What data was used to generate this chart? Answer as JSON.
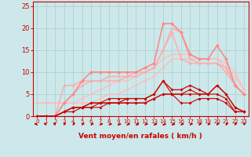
{
  "bg_color": "#cce8ea",
  "grid_color": "#aacccc",
  "axis_color": "#cc0000",
  "tick_color": "#cc0000",
  "xlabel": "Vent moyen/en rafales ( km/h )",
  "xlabel_color": "#cc0000",
  "ylabel_values": [
    0,
    5,
    10,
    15,
    20,
    25
  ],
  "xlim": [
    -0.5,
    23.5
  ],
  "ylim": [
    0,
    26
  ],
  "x": [
    0,
    1,
    2,
    3,
    4,
    5,
    6,
    7,
    8,
    9,
    10,
    11,
    12,
    13,
    14,
    15,
    16,
    17,
    18,
    19,
    20,
    21,
    22,
    23
  ],
  "series": [
    {
      "y": [
        3,
        3,
        3,
        3,
        3,
        3,
        3,
        4,
        5,
        5,
        6,
        7,
        8,
        9,
        11,
        13,
        13,
        13,
        13,
        13,
        13,
        12,
        10,
        6
      ],
      "color": "#ffbbbb",
      "lw": 0.9,
      "marker": "D",
      "ms": 2.0,
      "zorder": 2
    },
    {
      "y": [
        3,
        3,
        3,
        3,
        3,
        4,
        5,
        6,
        7,
        8,
        8,
        9,
        10,
        11,
        13,
        14,
        14,
        14,
        13,
        13,
        13,
        11,
        9,
        6
      ],
      "color": "#ffbbbb",
      "lw": 0.9,
      "marker": "D",
      "ms": 2.0,
      "zorder": 2
    },
    {
      "y": [
        0,
        0,
        0,
        3,
        5,
        7,
        8,
        8,
        9,
        9,
        9,
        9,
        10,
        11,
        15,
        20,
        19,
        13,
        12,
        12,
        12,
        10,
        7,
        5
      ],
      "color": "#ffaaaa",
      "lw": 1.0,
      "marker": "D",
      "ms": 2.0,
      "zorder": 3
    },
    {
      "y": [
        0,
        0,
        0,
        7,
        7,
        8,
        8,
        8,
        8,
        8,
        9,
        10,
        10,
        11,
        15,
        19,
        13,
        12,
        12,
        12,
        12,
        11,
        7,
        5
      ],
      "color": "#ffaaaa",
      "lw": 1.0,
      "marker": "D",
      "ms": 2.0,
      "zorder": 3
    },
    {
      "y": [
        0,
        0,
        0,
        3,
        5,
        8,
        10,
        10,
        10,
        10,
        10,
        10,
        11,
        12,
        21,
        21,
        19,
        14,
        13,
        13,
        16,
        13,
        7,
        5
      ],
      "color": "#ff8888",
      "lw": 1.2,
      "marker": "D",
      "ms": 2.5,
      "zorder": 4
    },
    {
      "y": [
        0,
        0,
        0,
        1,
        1,
        2,
        2,
        2,
        3,
        3,
        3,
        3,
        3,
        4,
        5,
        5,
        5,
        6,
        5,
        5,
        7,
        5,
        2,
        1
      ],
      "color": "#cc0000",
      "lw": 0.8,
      "marker": "D",
      "ms": 2.0,
      "zorder": 5
    },
    {
      "y": [
        0,
        0,
        0,
        1,
        2,
        2,
        2,
        3,
        3,
        3,
        3,
        3,
        3,
        4,
        5,
        5,
        3,
        3,
        4,
        4,
        4,
        3,
        1,
        1
      ],
      "color": "#cc0000",
      "lw": 0.8,
      "marker": "D",
      "ms": 2.0,
      "zorder": 5
    },
    {
      "y": [
        0,
        0,
        0,
        1,
        2,
        2,
        3,
        3,
        3,
        3,
        4,
        4,
        4,
        5,
        8,
        6,
        6,
        7,
        6,
        5,
        7,
        5,
        2,
        1
      ],
      "color": "#cc0000",
      "lw": 0.9,
      "marker": "D",
      "ms": 2.0,
      "zorder": 5
    },
    {
      "y": [
        0,
        0,
        0,
        1,
        2,
        2,
        3,
        3,
        4,
        4,
        4,
        4,
        4,
        5,
        8,
        5,
        5,
        5,
        5,
        5,
        5,
        4,
        1,
        1
      ],
      "color": "#cc0000",
      "lw": 0.8,
      "marker": "D",
      "ms": 2.0,
      "zorder": 4
    }
  ],
  "arrow_angles": [
    225,
    210,
    200,
    165,
    155,
    148,
    140,
    133,
    127,
    122,
    125,
    122,
    128,
    123,
    120,
    123,
    128,
    133,
    138,
    143,
    148,
    153,
    158,
    163
  ]
}
